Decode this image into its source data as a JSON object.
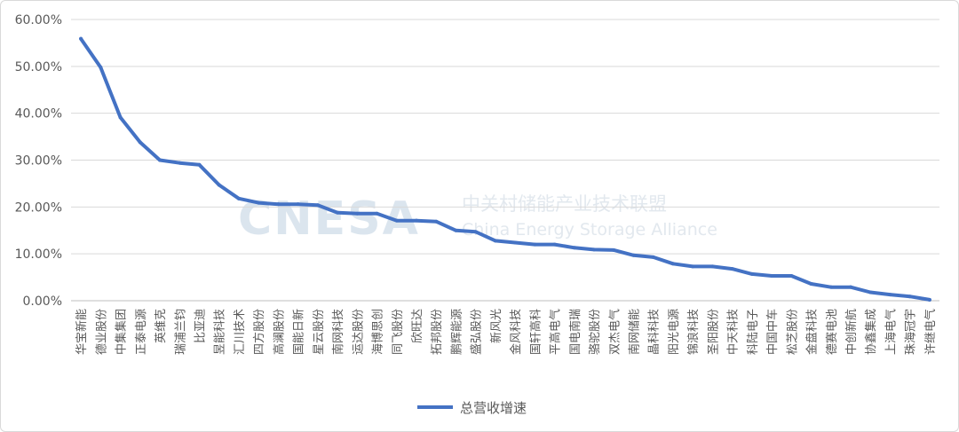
{
  "chart_data": {
    "type": "line",
    "title": "",
    "xlabel": "",
    "ylabel": "",
    "ylim": [
      0,
      0.6
    ],
    "y_ticks": [
      "0.00%",
      "10.00%",
      "20.00%",
      "30.00%",
      "40.00%",
      "50.00%",
      "60.00%"
    ],
    "grid": "horizontal",
    "legend_position": "bottom",
    "categories": [
      "华宝新能",
      "德业股份",
      "中集集团",
      "正泰电源",
      "英维克",
      "瑞浦兰钧",
      "比亚迪",
      "昱能科技",
      "汇川技术",
      "四方股份",
      "高澜股份",
      "国能日新",
      "星云股份",
      "南网科技",
      "运达股份",
      "海博思创",
      "同飞股份",
      "欣旺达",
      "拓邦股份",
      "鹏辉能源",
      "盛弘股份",
      "新风光",
      "金风科技",
      "国轩高科",
      "平高电气",
      "国电南瑞",
      "骆驼股份",
      "双杰电气",
      "南网储能",
      "晶科科技",
      "阳光电源",
      "锦浪科技",
      "圣阳股份",
      "中天科技",
      "科陆电子",
      "中国中车",
      "松芝股份",
      "金盘科技",
      "德赛电池",
      "中创新航",
      "协鑫集成",
      "上海电气",
      "珠海冠宇",
      "许继电气"
    ],
    "series": [
      {
        "name": "总营收增速",
        "color": "#4472C4",
        "values": [
          0.559,
          0.498,
          0.391,
          0.338,
          0.3,
          0.294,
          0.29,
          0.247,
          0.218,
          0.209,
          0.206,
          0.206,
          0.204,
          0.188,
          0.186,
          0.186,
          0.171,
          0.171,
          0.169,
          0.15,
          0.147,
          0.128,
          0.124,
          0.12,
          0.12,
          0.113,
          0.109,
          0.108,
          0.097,
          0.093,
          0.079,
          0.073,
          0.073,
          0.068,
          0.057,
          0.053,
          0.053,
          0.036,
          0.029,
          0.029,
          0.018,
          0.013,
          0.009,
          0.002
        ]
      }
    ]
  },
  "watermark": {
    "brand": "CNESA",
    "cn": "中关村储能产业技术联盟",
    "en": "China Energy Storage Alliance"
  }
}
